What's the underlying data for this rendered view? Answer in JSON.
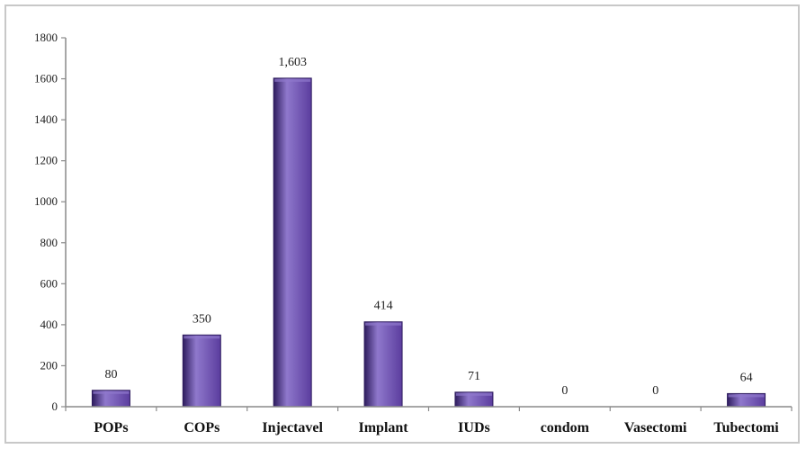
{
  "chart_data": {
    "type": "bar",
    "categories": [
      "POPs",
      "COPs",
      "Injectavel",
      "Implant",
      "IUDs",
      "condom",
      "Vasectomi",
      "Tubectomi"
    ],
    "values": [
      80,
      350,
      1603,
      414,
      71,
      0,
      0,
      64
    ],
    "data_labels": [
      "80",
      "350",
      "1,603",
      "414",
      "71",
      "0",
      "0",
      "64"
    ],
    "title": "",
    "xlabel": "",
    "ylabel": "",
    "ylim": [
      0,
      1800
    ],
    "yticks": [
      0,
      200,
      400,
      600,
      800,
      1000,
      1200,
      1400,
      1600,
      1800
    ],
    "grid": false,
    "legend": "none",
    "colors": {
      "bar_fill": "#5b3d9e",
      "bar_highlight": "#8f78cc",
      "bar_shadow": "#2e1c5e",
      "axis": "#8a8a8a"
    }
  }
}
